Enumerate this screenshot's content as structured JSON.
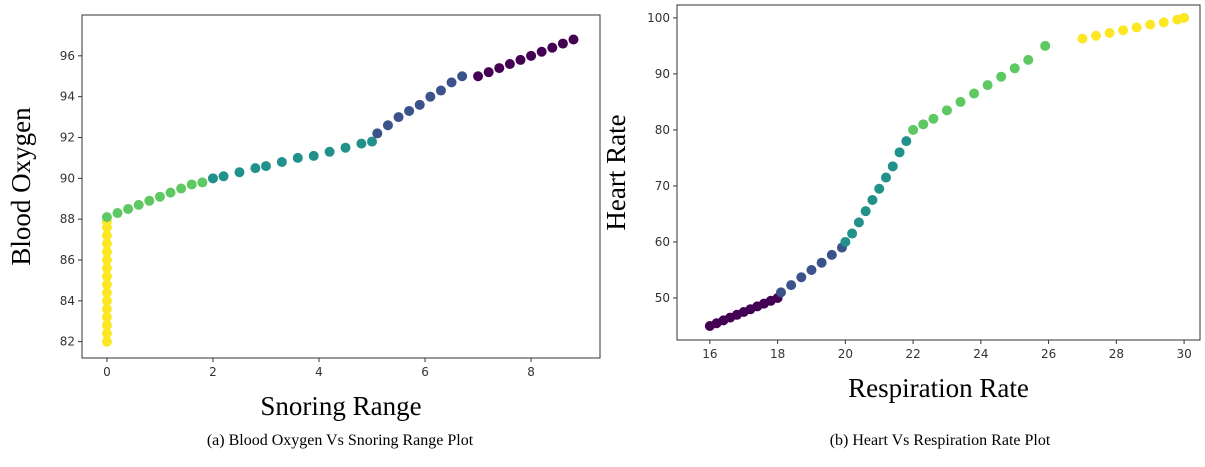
{
  "chart_data": [
    {
      "type": "scatter",
      "title": "(a) Blood Oxygen Vs Snoring Range Plot",
      "x_label": "Snoring Range",
      "y_label": "Blood Oxygen",
      "xlim": [
        -0.47,
        9.3
      ],
      "ylim": [
        81.2,
        98
      ],
      "xticks": [
        0,
        2,
        4,
        6,
        8
      ],
      "yticks": [
        82,
        84,
        86,
        88,
        90,
        92,
        94,
        96
      ],
      "series": [
        {
          "color": "#fde725",
          "x": [
            0,
            0,
            0,
            0,
            0,
            0,
            0,
            0,
            0,
            0,
            0,
            0,
            0,
            0,
            0,
            0
          ],
          "values": [
            82,
            82.4,
            82.8,
            83.2,
            83.6,
            84,
            84.4,
            84.8,
            85.2,
            85.6,
            86,
            86.4,
            86.8,
            87.2,
            87.6,
            87.9
          ]
        },
        {
          "color": "#5ec962",
          "x": [
            0,
            0.2,
            0.4,
            0.6,
            0.8,
            1,
            1.2,
            1.4,
            1.6,
            1.8
          ],
          "values": [
            88.1,
            88.3,
            88.5,
            88.7,
            88.9,
            89.1,
            89.3,
            89.5,
            89.7,
            89.8
          ]
        },
        {
          "color": "#21918c",
          "x": [
            2,
            2.2,
            2.5,
            2.8,
            3,
            3.3,
            3.6,
            3.9,
            4.2,
            4.5,
            4.8,
            5
          ],
          "values": [
            90,
            90.1,
            90.3,
            90.5,
            90.6,
            90.8,
            91,
            91.1,
            91.3,
            91.5,
            91.7,
            91.8
          ]
        },
        {
          "color": "#3b528b",
          "x": [
            5.1,
            5.3,
            5.5,
            5.7,
            5.9,
            6.1,
            6.3,
            6.5,
            6.7
          ],
          "values": [
            92.2,
            92.6,
            93,
            93.3,
            93.6,
            94,
            94.3,
            94.7,
            95
          ]
        },
        {
          "color": "#440154",
          "x": [
            7,
            7.2,
            7.4,
            7.6,
            7.8,
            8,
            8.2,
            8.4,
            8.6,
            8.8
          ],
          "values": [
            95,
            95.2,
            95.4,
            95.6,
            95.8,
            96,
            96.2,
            96.4,
            96.6,
            96.8
          ]
        }
      ]
    },
    {
      "type": "scatter",
      "title": "(b) Heart Vs Respiration Rate Plot",
      "x_label": "Respiration Rate",
      "y_label": "Heart  Rate",
      "xlim": [
        15.03,
        30.47
      ],
      "ylim": [
        42.5,
        102.3
      ],
      "xticks": [
        16,
        18,
        20,
        22,
        24,
        26,
        28,
        30
      ],
      "yticks": [
        50,
        60,
        70,
        80,
        90,
        100
      ],
      "series": [
        {
          "color": "#440154",
          "x": [
            16,
            16.2,
            16.4,
            16.6,
            16.8,
            17,
            17.2,
            17.4,
            17.6,
            17.8,
            18
          ],
          "values": [
            45,
            45.5,
            46,
            46.5,
            47,
            47.5,
            48,
            48.5,
            49,
            49.5,
            50
          ]
        },
        {
          "color": "#3b528b",
          "x": [
            18.1,
            18.4,
            18.7,
            19,
            19.3,
            19.6,
            19.9
          ],
          "values": [
            51,
            52.3,
            53.7,
            55,
            56.3,
            57.7,
            59
          ]
        },
        {
          "color": "#21918c",
          "x": [
            20,
            20.2,
            20.4,
            20.6,
            20.8,
            21,
            21.2,
            21.4,
            21.6,
            21.8
          ],
          "values": [
            60,
            61.5,
            63.5,
            65.5,
            67.5,
            69.5,
            71.5,
            73.5,
            76,
            78
          ]
        },
        {
          "color": "#5ec962",
          "x": [
            22,
            22.3,
            22.6,
            23,
            23.4,
            23.8,
            24.2,
            24.6,
            25,
            25.4,
            25.9
          ],
          "values": [
            80,
            81,
            82,
            83.5,
            85,
            86.5,
            88,
            89.5,
            91,
            92.5,
            95
          ]
        },
        {
          "color": "#fde725",
          "x": [
            27,
            27.4,
            27.8,
            28.2,
            28.6,
            29,
            29.4,
            29.8,
            30
          ],
          "values": [
            96.3,
            96.8,
            97.3,
            97.8,
            98.3,
            98.8,
            99.2,
            99.7,
            100
          ]
        }
      ]
    }
  ]
}
